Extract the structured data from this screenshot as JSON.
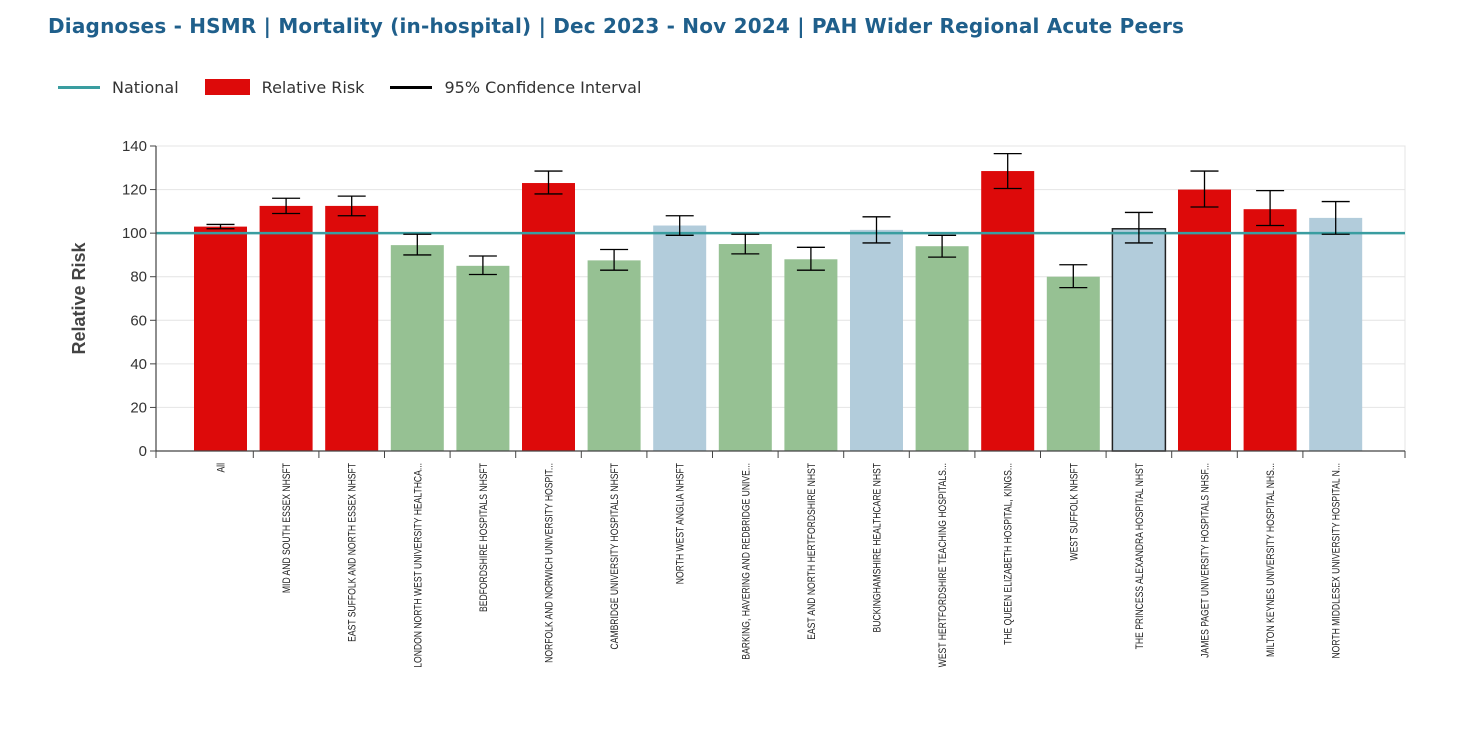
{
  "header": {
    "title": "Diagnoses - HSMR | Mortality (in-hospital) | Dec 2023 - Nov 2024 | PAH Wider Regional Acute Peers"
  },
  "legend": {
    "items": [
      {
        "label": "National",
        "kind": "line",
        "color": "#3a9da0"
      },
      {
        "label": "Relative Risk",
        "kind": "box",
        "color": "#dd0a0a"
      },
      {
        "label": "95% Confidence Interval",
        "kind": "line",
        "color": "#000000"
      }
    ]
  },
  "colors": {
    "high": "#dd0a0a",
    "low": "#96c193",
    "as_expected": "#b2ccdb",
    "national": "#3a9da0",
    "axis": "#444444",
    "grid": "#e4e4e4"
  },
  "chart_data": {
    "type": "bar",
    "title": "Diagnoses - HSMR | Mortality (in-hospital) | Dec 2023 - Nov 2024 | PAH Wider Regional Acute Peers",
    "xlabel": "",
    "ylabel": "Relative Risk",
    "ylim": [
      0,
      140
    ],
    "yticks": [
      0,
      20,
      40,
      60,
      80,
      100,
      120,
      140
    ],
    "national": 100,
    "categories": [
      "All",
      "MID AND SOUTH ESSEX NHSFT",
      "EAST SUFFOLK AND NORTH ESSEX NHSFT",
      "LONDON NORTH WEST UNIVERSITY HEALTHCA...",
      "BEDFORDSHIRE HOSPITALS NHSFT",
      "NORFOLK AND NORWICH UNIVERSITY HOSPIT...",
      "CAMBRIDGE UNIVERSITY HOSPITALS NHSFT",
      "NORTH WEST ANGLIA NHSFT",
      "BARKING, HAVERING AND REDBRIDGE UNIVE...",
      "EAST AND NORTH HERTFORDSHIRE NHST",
      "BUCKINGHAMSHIRE HEALTHCARE NHST",
      "WEST HERTFORDSHIRE TEACHING HOSPITALS...",
      "THE QUEEN ELIZABETH HOSPITAL, KINGS...",
      "WEST SUFFOLK NHSFT",
      "THE PRINCESS ALEXANDRA HOSPITAL NHST",
      "JAMES PAGET UNIVERSITY HOSPITALS NHSF...",
      "MILTON KEYNES UNIVERSITY HOSPITAL NHS...",
      "NORTH MIDDLESEX UNIVERSITY HOSPITAL N..."
    ],
    "values": [
      103,
      112.5,
      112.5,
      94.5,
      85,
      123,
      87.5,
      103.5,
      95,
      88,
      101.5,
      94,
      128.5,
      80,
      102,
      120,
      111,
      107
    ],
    "ci_low": [
      102,
      109,
      108,
      90,
      81,
      118,
      83,
      99,
      90.5,
      83,
      95.5,
      89,
      120.5,
      75,
      95.5,
      112,
      103.5,
      99.5
    ],
    "ci_high": [
      104,
      116,
      117,
      99.5,
      89.5,
      128.5,
      92.5,
      108,
      99.5,
      93.5,
      107.5,
      99,
      136.5,
      85.5,
      109.5,
      128.5,
      119.5,
      114.5
    ],
    "status": [
      "high",
      "high",
      "high",
      "low",
      "low",
      "high",
      "low",
      "as_expected",
      "low",
      "low",
      "as_expected",
      "low",
      "high",
      "low",
      "as_expected",
      "high",
      "high",
      "as_expected"
    ],
    "highlighted_index": 14
  }
}
